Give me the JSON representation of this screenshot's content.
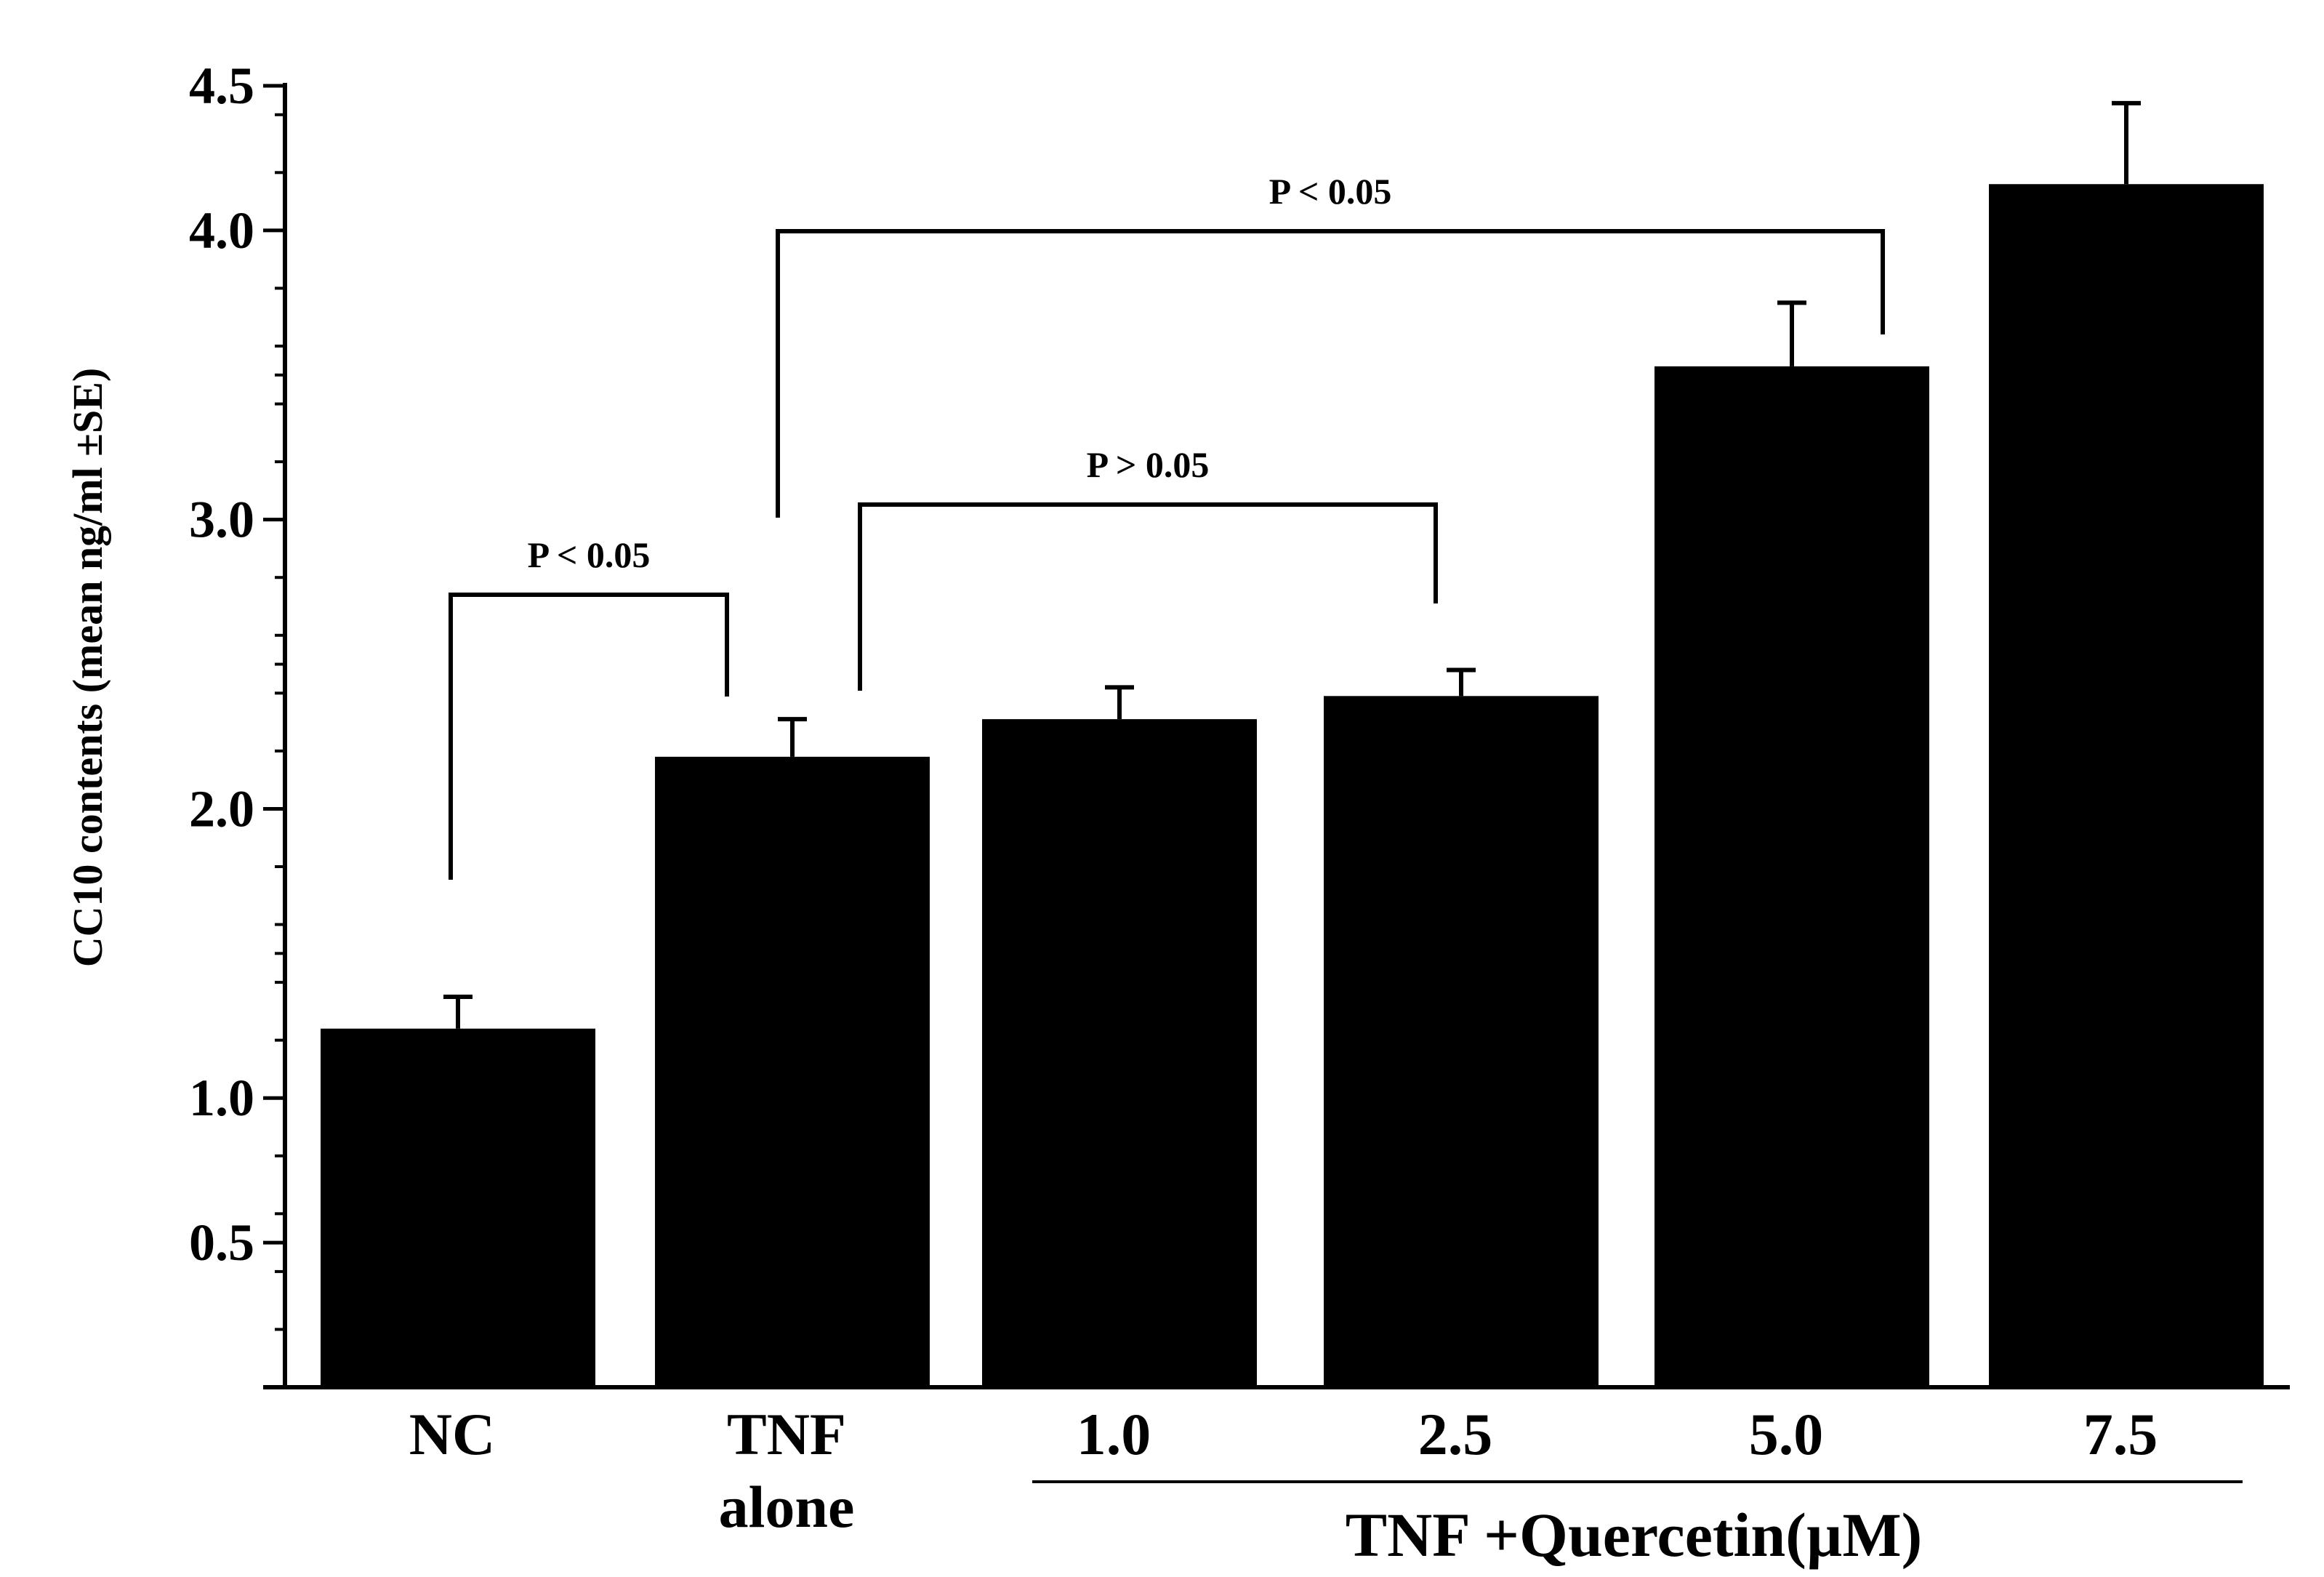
{
  "chart_data": {
    "type": "bar",
    "ylabel": "CC10 contents (mean ng/ml ±SE)",
    "ylim": [
      0,
      4.5
    ],
    "y_ticks": [
      {
        "value": 0.5,
        "label": "0.5"
      },
      {
        "value": 1.0,
        "label": "1.0"
      },
      {
        "value": 2.0,
        "label": "2.0"
      },
      {
        "value": 3.0,
        "label": "3.0"
      },
      {
        "value": 4.0,
        "label": "4.0"
      },
      {
        "value": 4.5,
        "label": "4.5"
      }
    ],
    "categories": [
      {
        "key": "NC",
        "lines": [
          "NC"
        ]
      },
      {
        "key": "TNF alone",
        "lines": [
          "TNF",
          "alone"
        ]
      },
      {
        "key": "1.0",
        "lines": [
          "1.0"
        ]
      },
      {
        "key": "2.5",
        "lines": [
          "2.5"
        ]
      },
      {
        "key": "5.0",
        "lines": [
          "5.0"
        ]
      },
      {
        "key": "7.5",
        "lines": [
          "7.5"
        ]
      }
    ],
    "values": [
      1.24,
      2.18,
      2.31,
      2.39,
      3.53,
      4.16
    ],
    "errors": [
      0.11,
      0.13,
      0.11,
      0.09,
      0.22,
      0.28
    ],
    "bar_color": "#000000",
    "group_label": {
      "text": "TNF +Quercetin(µM)",
      "from_category": 2,
      "to_category": 5
    },
    "significance": [
      {
        "from": 0,
        "to": 1,
        "label": "P < 0.05"
      },
      {
        "from": 1,
        "to": 3,
        "label": "P > 0.05"
      },
      {
        "from": 1,
        "to": 4,
        "label": "P < 0.05"
      }
    ],
    "grid": false,
    "legend": "none"
  }
}
